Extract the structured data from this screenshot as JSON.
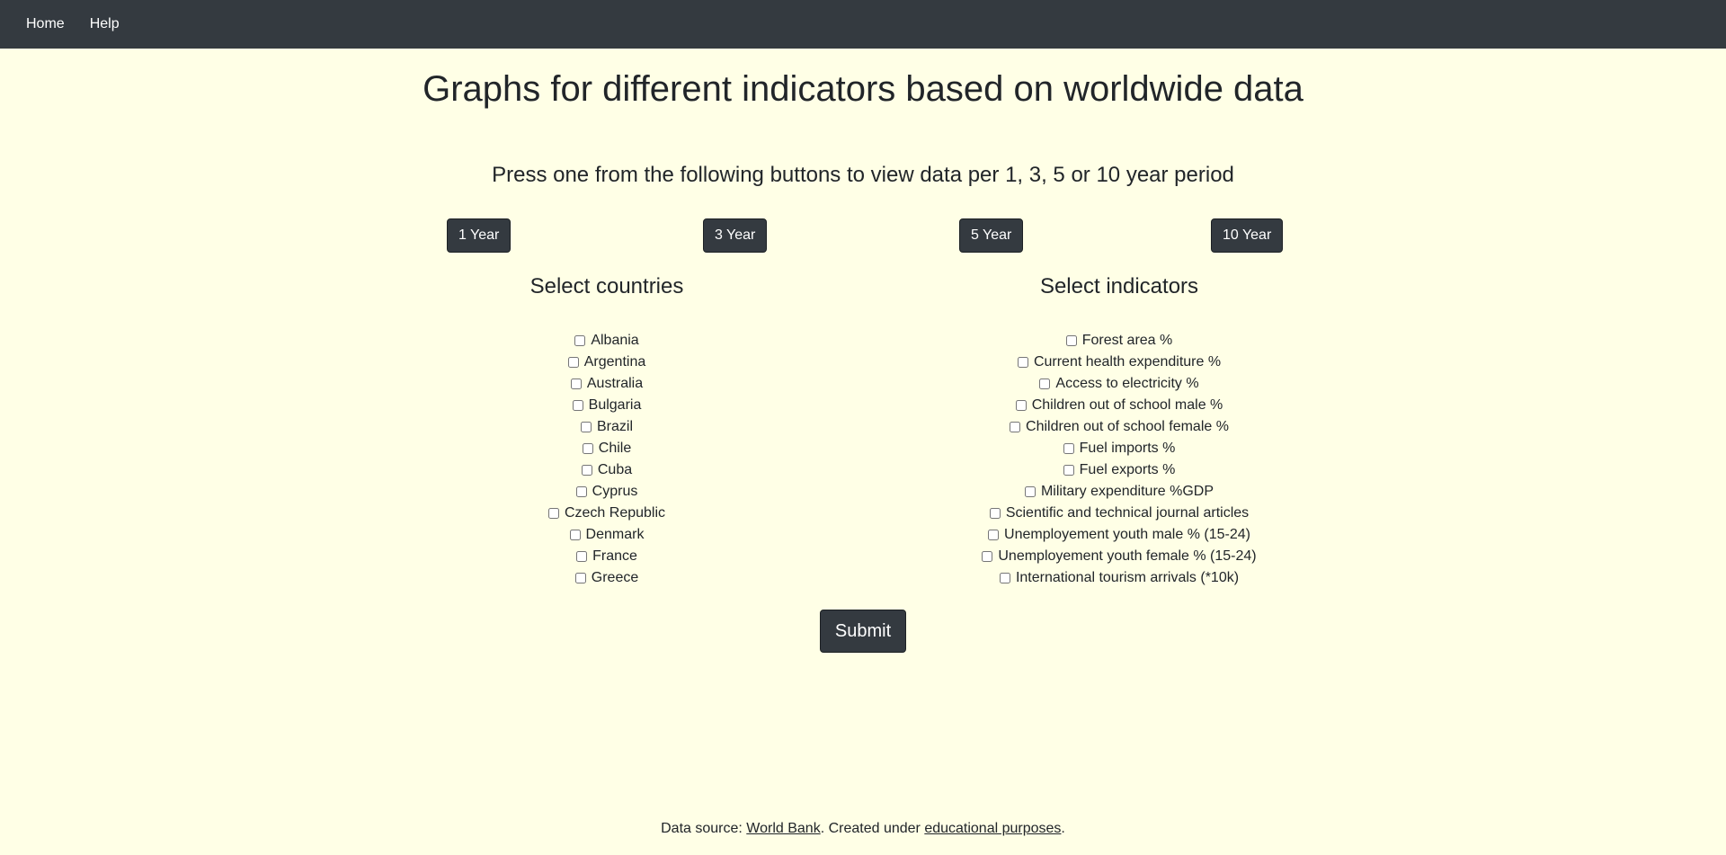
{
  "nav": {
    "home": "Home",
    "help": "Help"
  },
  "title": "Graphs for different indicators based on worldwide data",
  "subtitle": "Press one from the following buttons to view data per 1, 3, 5 or 10 year period",
  "year_buttons": [
    "1 Year",
    "3 Year",
    "5 Year",
    "10 Year"
  ],
  "countries": {
    "heading": "Select countries",
    "items": [
      "Albania",
      "Argentina",
      "Australia",
      "Bulgaria",
      "Brazil",
      "Chile",
      "Cuba",
      "Cyprus",
      "Czech Republic",
      "Denmark",
      "France",
      "Greece"
    ]
  },
  "indicators": {
    "heading": "Select indicators",
    "items": [
      "Forest area %",
      "Current health expenditure %",
      "Access to electricity %",
      "Children out of school male %",
      "Children out of school female %",
      "Fuel imports %",
      "Fuel exports %",
      "Military expenditure %GDP",
      "Scientific and technical journal articles",
      "Unemployement youth male % (15-24)",
      "Unemployement youth female % (15-24)",
      "International tourism arrivals (*10k)"
    ]
  },
  "submit_label": "Submit",
  "footer": {
    "prefix": "Data source: ",
    "source_link": "World Bank",
    "middle": ". Created under ",
    "purpose_link": "educational purposes",
    "suffix": "."
  }
}
